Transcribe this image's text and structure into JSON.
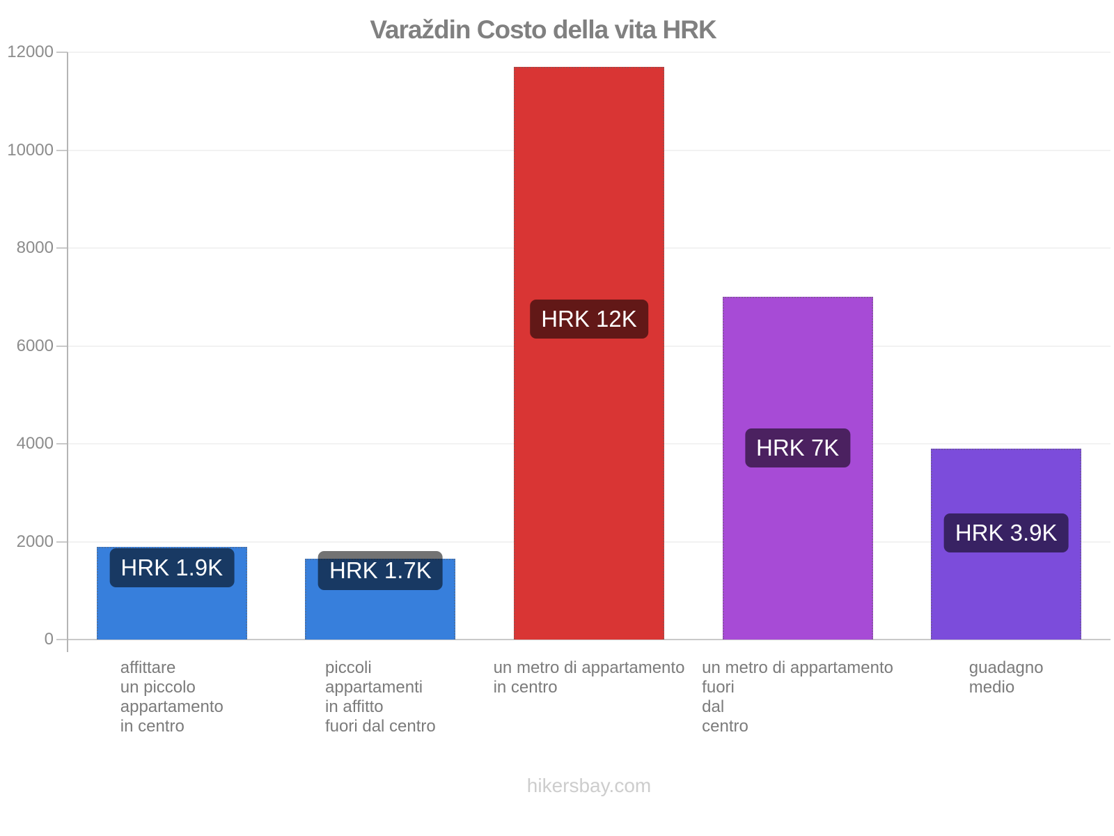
{
  "page": {
    "background": "#ffffff",
    "footer": "hikersbay.com"
  },
  "chart_data": {
    "type": "bar",
    "title": "Varaždin Costo della vita HRK",
    "currency": "HRK",
    "categories": [
      [
        "affittare",
        "un piccolo",
        "appartamento",
        "in centro"
      ],
      [
        "piccoli",
        "appartamenti",
        "in affitto",
        "fuori dal centro"
      ],
      [
        "un metro di appartamento",
        "in centro"
      ],
      [
        "un metro di appartamento",
        "fuori",
        "dal",
        "centro"
      ],
      [
        "guadagno",
        "medio"
      ]
    ],
    "values": [
      1900,
      1650,
      11700,
      7000,
      3900
    ],
    "value_labels": [
      "HRK 1.9K",
      "HRK 1.7K",
      "HRK 12K",
      "HRK 7K",
      "HRK 3.9K"
    ],
    "bar_colors": [
      "#377fdc",
      "#377fdc",
      "#d93534",
      "#a74bd6",
      "#7c4cdb"
    ],
    "y_ticks": [
      0,
      2000,
      4000,
      6000,
      8000,
      10000,
      12000
    ],
    "ylim": [
      0,
      12000
    ],
    "grid": true,
    "legend": "none",
    "xlabel": "",
    "ylabel": "",
    "colors": {
      "value_label_bg": "rgba(0,0,0,0.55)",
      "value_label_text": "#ffffff",
      "title": "#808080",
      "y_tick_text": "#8c8c8c",
      "x_label_text": "#7b7b7b",
      "gridline": "#f2f2f2",
      "baseline": "#c9c9c9",
      "axis_line": "#b5b5b5",
      "footer_text": "#cdcdcd"
    }
  }
}
